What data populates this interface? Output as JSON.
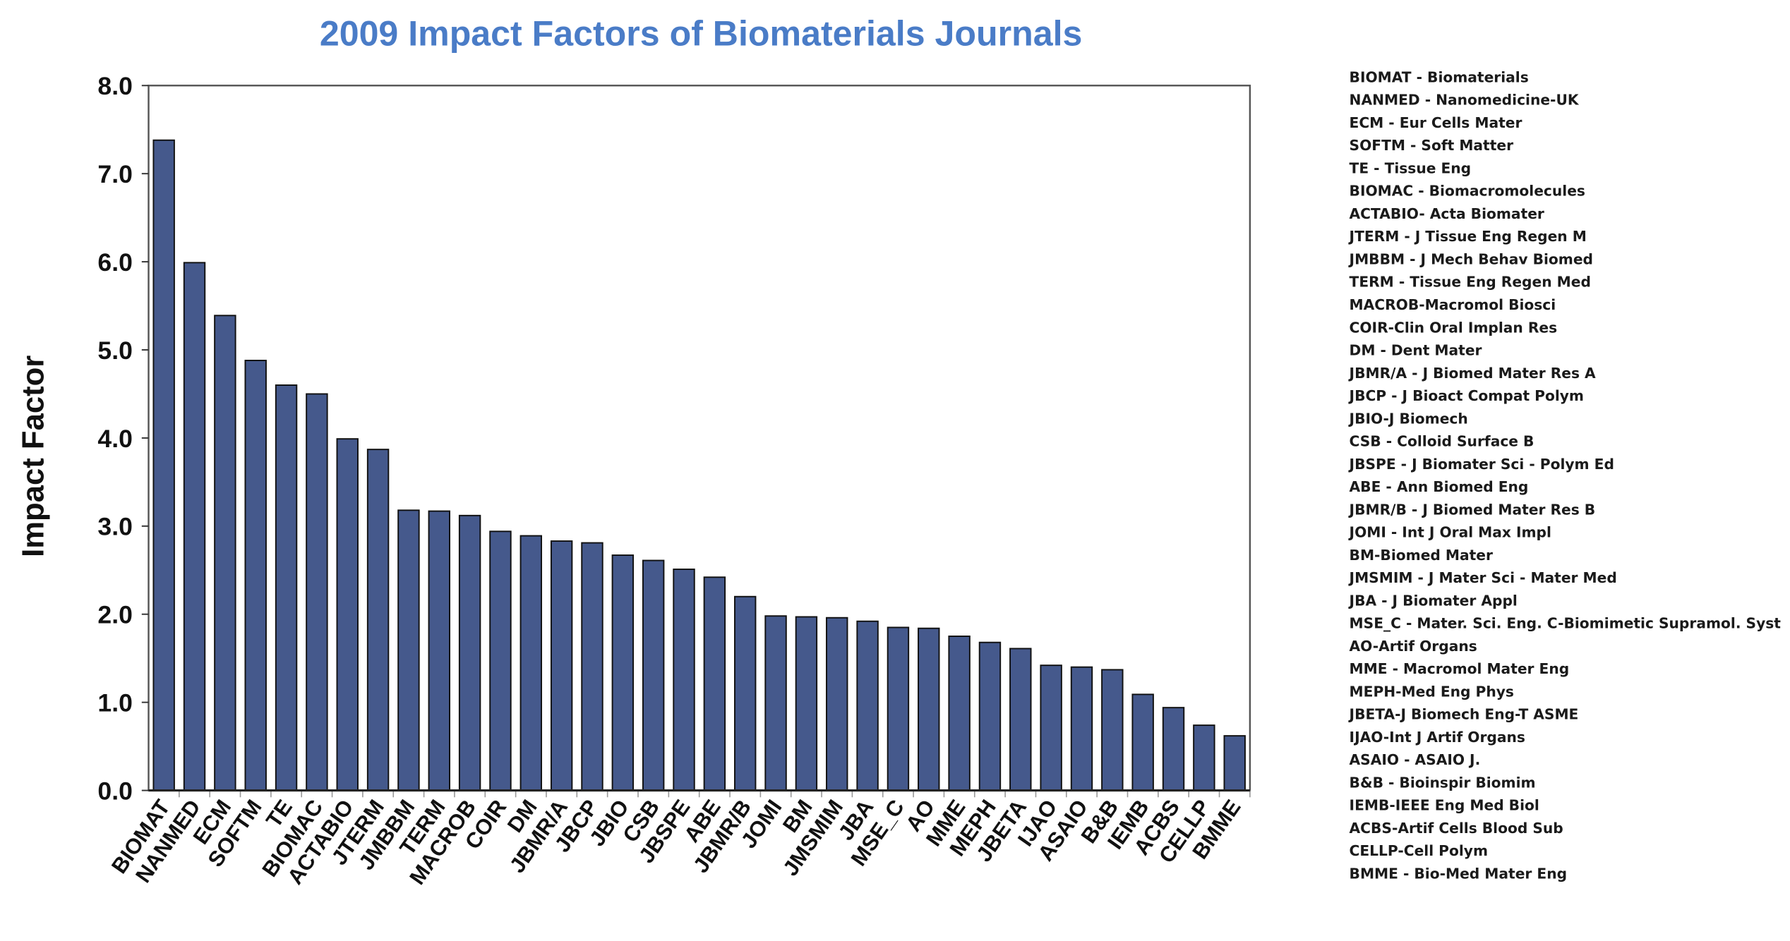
{
  "chart_data": {
    "type": "bar",
    "title": "2009 Impact Factors of Biomaterials Journals",
    "xlabel": "",
    "ylabel": "Impact  Factor",
    "ylim": [
      0,
      8
    ],
    "yticks": [
      "0.0",
      "1.0",
      "2.0",
      "3.0",
      "4.0",
      "5.0",
      "6.0",
      "7.0",
      "8.0"
    ],
    "grid": false,
    "bar_color": "#45598c",
    "title_color": "#4a7cc7",
    "categories": [
      "BIOMAT",
      "NANMED",
      "ECM",
      "SOFTM",
      "TE",
      "BIOMAC",
      "ACTABIO",
      "JTERM",
      "JMBBM",
      "TERM",
      "MACROB",
      "COIR",
      "DM",
      "JBMR/A",
      "JBCP",
      "JBIO",
      "CSB",
      "JBSPE",
      "ABE",
      "JBMR/B",
      "JOMI",
      "BM",
      "JMSMIM",
      "JBA",
      "MSE_C",
      "AO",
      "MME",
      "MEPH",
      "JBETA",
      "IJAO",
      "ASAIO",
      "B&B",
      "IEMB",
      "ACBS",
      "CELLP",
      "BMME"
    ],
    "values": [
      7.38,
      5.99,
      5.39,
      4.88,
      4.6,
      4.5,
      3.99,
      3.87,
      3.18,
      3.17,
      3.12,
      2.94,
      2.89,
      2.83,
      2.81,
      2.67,
      2.61,
      2.51,
      2.42,
      2.2,
      1.98,
      1.97,
      1.96,
      1.92,
      1.85,
      1.84,
      1.75,
      1.68,
      1.61,
      1.42,
      1.4,
      1.37,
      1.09,
      0.94,
      0.74,
      0.62
    ],
    "legend_placement": "right",
    "legend": [
      "BIOMAT - Biomaterials",
      "NANMED - Nanomedicine-UK",
      "ECM - Eur Cells Mater",
      "SOFTM - Soft Matter",
      "TE - Tissue Eng",
      "BIOMAC - Biomacromolecules",
      "ACTABIO- Acta Biomater",
      "JTERM - J Tissue Eng Regen M",
      "JMBBM - J Mech Behav Biomed",
      "TERM - Tissue Eng Regen Med",
      "MACROB-Macromol Biosci",
      "COIR-Clin Oral Implan Res",
      "DM - Dent Mater",
      "JBMR/A - J Biomed Mater Res A",
      "JBCP - J Bioact Compat Polym",
      "JBIO-J Biomech",
      "CSB - Colloid Surface B",
      "JBSPE - J Biomater Sci - Polym Ed",
      "ABE - Ann Biomed Eng",
      "JBMR/B - J Biomed Mater Res B",
      "JOMI - Int J Oral Max Impl",
      "BM-Biomed Mater",
      "JMSMIM - J Mater Sci - Mater Med",
      "JBA - J Biomater Appl",
      "MSE_C - Mater. Sci. Eng. C-Biomimetic Supramol. Syst",
      "AO-Artif Organs",
      "MME - Macromol Mater Eng",
      "MEPH-Med Eng Phys",
      "JBETA-J Biomech Eng-T ASME",
      "IJAO-Int J Artif Organs",
      "ASAIO - ASAIO J.",
      "B&B - Bioinspir Biomim",
      "IEMB-IEEE Eng Med Biol",
      "ACBS-Artif Cells Blood Sub",
      "CELLP-Cell Polym",
      "BMME - Bio-Med Mater Eng"
    ]
  }
}
